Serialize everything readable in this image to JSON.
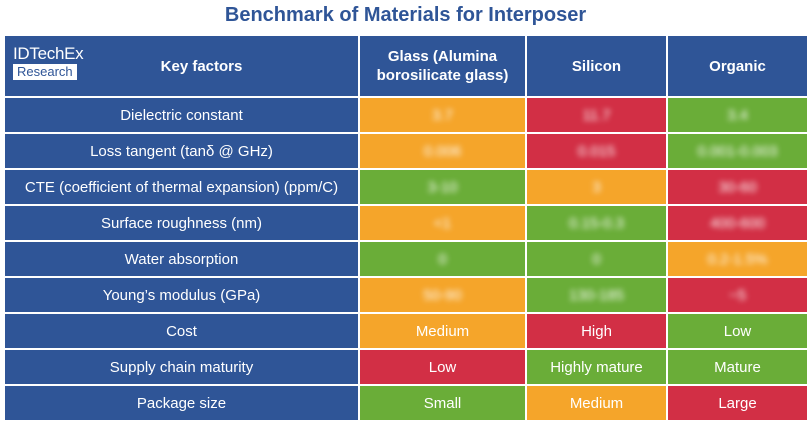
{
  "title": "Benchmark of Materials for Interposer",
  "logo": {
    "line1": "IDTechEx",
    "line2": "Research"
  },
  "header": {
    "factor": "Key factors",
    "glass": "Glass (Alumina borosilicate glass)",
    "silicon": "Silicon",
    "organic": "Organic"
  },
  "colors": {
    "header": "#2f5597",
    "orange": "#f5a52a",
    "red": "#d22f45",
    "green": "#6aad38"
  },
  "rows": [
    {
      "factor": "Dielectric constant",
      "cells": [
        {
          "text": "3.7",
          "color": "orange",
          "blurred": true
        },
        {
          "text": "11.7",
          "color": "red",
          "blurred": true
        },
        {
          "text": "3.4",
          "color": "green",
          "blurred": true
        }
      ]
    },
    {
      "factor": "Loss tangent (tanδ @ GHz)",
      "cells": [
        {
          "text": "0.006",
          "color": "orange",
          "blurred": true
        },
        {
          "text": "0.015",
          "color": "red",
          "blurred": true
        },
        {
          "text": "0.001-0.003",
          "color": "green",
          "blurred": true
        }
      ]
    },
    {
      "factor": "CTE (coefficient of thermal expansion) (ppm/C)",
      "cells": [
        {
          "text": "3-10",
          "color": "green",
          "blurred": true
        },
        {
          "text": "3",
          "color": "orange",
          "blurred": true
        },
        {
          "text": "30-60",
          "color": "red",
          "blurred": true
        }
      ]
    },
    {
      "factor": "Surface roughness (nm)",
      "cells": [
        {
          "text": "<1",
          "color": "orange",
          "blurred": true
        },
        {
          "text": "0.15-0.3",
          "color": "green",
          "blurred": true
        },
        {
          "text": "400-600",
          "color": "red",
          "blurred": true
        }
      ]
    },
    {
      "factor": "Water absorption",
      "cells": [
        {
          "text": "0",
          "color": "green",
          "blurred": true
        },
        {
          "text": "0",
          "color": "green",
          "blurred": true
        },
        {
          "text": "0.2-1.5%",
          "color": "orange",
          "blurred": true
        }
      ]
    },
    {
      "factor": "Young’s modulus (GPa)",
      "cells": [
        {
          "text": "50-90",
          "color": "orange",
          "blurred": true
        },
        {
          "text": "130-185",
          "color": "green",
          "blurred": true
        },
        {
          "text": "~5",
          "color": "red",
          "blurred": true
        }
      ]
    },
    {
      "factor": "Cost",
      "cells": [
        {
          "text": "Medium",
          "color": "orange",
          "blurred": false
        },
        {
          "text": "High",
          "color": "red",
          "blurred": false
        },
        {
          "text": "Low",
          "color": "green",
          "blurred": false
        }
      ]
    },
    {
      "factor": "Supply chain maturity",
      "cells": [
        {
          "text": "Low",
          "color": "red",
          "blurred": false
        },
        {
          "text": "Highly mature",
          "color": "green",
          "blurred": false
        },
        {
          "text": "Mature",
          "color": "green",
          "blurred": false
        }
      ]
    },
    {
      "factor": "Package size",
      "cells": [
        {
          "text": "Small",
          "color": "green",
          "blurred": false
        },
        {
          "text": "Medium",
          "color": "orange",
          "blurred": false
        },
        {
          "text": "Large",
          "color": "red",
          "blurred": false
        }
      ]
    }
  ]
}
